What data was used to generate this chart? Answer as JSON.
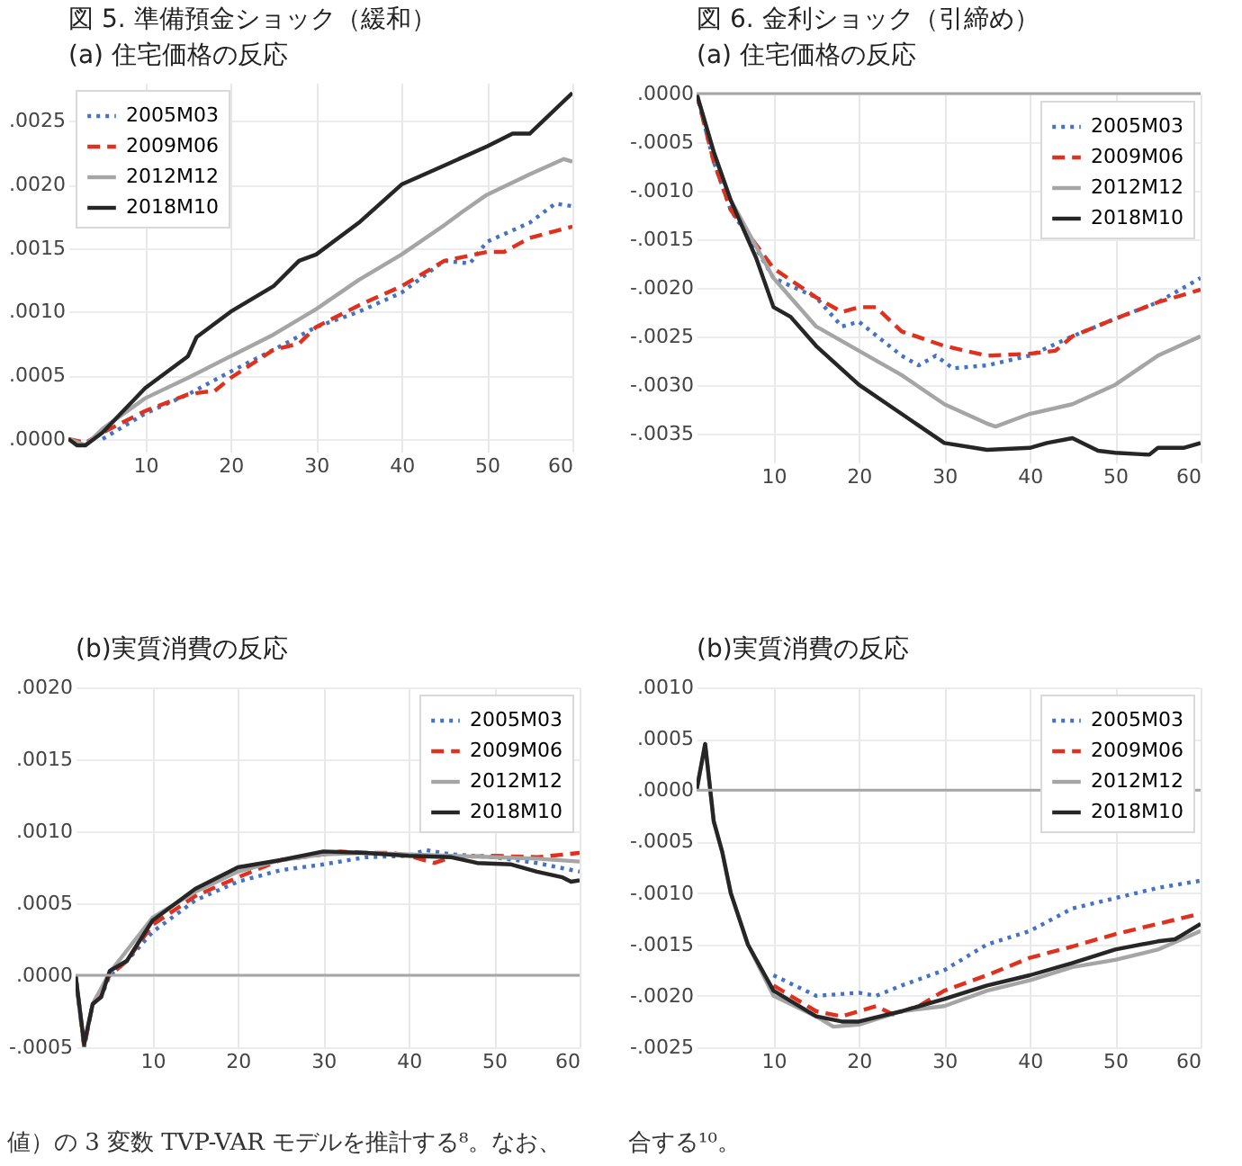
{
  "chart_data": [
    {
      "type": "line",
      "title": "図 5.  準備預金ショック（緩和）",
      "subtitle": "(a) 住宅価格の反応",
      "xlim": [
        1,
        60
      ],
      "xticks": [
        10,
        20,
        30,
        40,
        50,
        60
      ],
      "ylim": [
        -0.0001,
        0.0028
      ],
      "yticks": [
        {
          "value": 0,
          "label": ".0000"
        },
        {
          "value": 0.0005,
          "label": ".0005"
        },
        {
          "value": 0.001,
          "label": ".0010"
        },
        {
          "value": 0.0015,
          "label": ".0015"
        },
        {
          "value": 0.002,
          "label": ".0020"
        },
        {
          "value": 0.0025,
          "label": ".0025"
        }
      ],
      "grid": true,
      "legend": "top left",
      "series": [
        {
          "name": "2005M03",
          "color": "#4472c4",
          "line_style": "dotted",
          "x": [
            5,
            10,
            15,
            20,
            25,
            30,
            35,
            40,
            45,
            48,
            50,
            55,
            58,
            60
          ],
          "values": [
            0,
            0.0002,
            0.00035,
            0.00053,
            0.0007,
            0.00088,
            0.001,
            0.00115,
            0.0014,
            0.00138,
            0.00155,
            0.0017,
            0.00185,
            0.00183
          ]
        },
        {
          "name": "2009M06",
          "color": "#e0301e",
          "line_style": "dashed",
          "x": [
            1,
            3,
            5,
            10,
            15,
            17,
            18,
            20,
            25,
            28,
            30,
            35,
            40,
            45,
            50,
            52,
            55,
            60
          ],
          "values": [
            0,
            -3e-05,
            5e-05,
            0.00022,
            0.00035,
            0.00037,
            0.00037,
            0.00048,
            0.0007,
            0.00075,
            0.00088,
            0.00105,
            0.0012,
            0.0014,
            0.00147,
            0.00147,
            0.00158,
            0.00167
          ]
        },
        {
          "name": "2012M12",
          "color": "#a5a5a5",
          "line_style": "solid",
          "x": [
            1,
            3,
            5,
            10,
            15,
            20,
            25,
            30,
            35,
            40,
            45,
            47,
            50,
            55,
            59,
            60
          ],
          "values": [
            0,
            -5e-05,
            8e-05,
            0.00032,
            0.00048,
            0.00065,
            0.00082,
            0.00102,
            0.00125,
            0.00145,
            0.00168,
            0.00178,
            0.00192,
            0.00208,
            0.0022,
            0.00218
          ]
        },
        {
          "name": "2018M10",
          "color": "#262626",
          "line_style": "solid",
          "x": [
            1,
            2,
            3,
            5,
            10,
            15,
            16,
            20,
            25,
            28,
            30,
            35,
            40,
            45,
            50,
            53,
            55,
            60
          ],
          "values": [
            0,
            -5e-05,
            -5e-05,
            5e-05,
            0.0004,
            0.00065,
            0.0008,
            0.001,
            0.0012,
            0.0014,
            0.00145,
            0.0017,
            0.002,
            0.00215,
            0.0023,
            0.0024,
            0.0024,
            0.00272
          ]
        }
      ]
    },
    {
      "type": "line",
      "title": "図 6.  金利ショック（引締め）",
      "subtitle": "(a) 住宅価格の反応",
      "xlim": [
        1,
        60
      ],
      "xticks": [
        10,
        20,
        30,
        40,
        50,
        60
      ],
      "ylim": [
        -0.0038,
        0
      ],
      "yticks": [
        {
          "value": 0,
          "label": ".0000"
        },
        {
          "value": -0.0005,
          "label": "-.0005"
        },
        {
          "value": -0.001,
          "label": "-.0010"
        },
        {
          "value": -0.0015,
          "label": "-.0015"
        },
        {
          "value": -0.002,
          "label": "-.0020"
        },
        {
          "value": -0.0025,
          "label": "-.0025"
        },
        {
          "value": -0.003,
          "label": "-.0030"
        },
        {
          "value": -0.0035,
          "label": "-.0035"
        }
      ],
      "grid": true,
      "legend": "top right",
      "ref_lines": [
        {
          "axis": "y",
          "value": 0,
          "color": "#a6a6a6"
        }
      ],
      "series": [
        {
          "name": "2005M03",
          "color": "#4472c4",
          "line_style": "dotted",
          "x": [
            1,
            3,
            5,
            8,
            10,
            15,
            18,
            20,
            25,
            27,
            29,
            31,
            35,
            40,
            45,
            50,
            55,
            60
          ],
          "values": [
            0,
            -0.0007,
            -0.0012,
            -0.0016,
            -0.0019,
            -0.0021,
            -0.0024,
            -0.00235,
            -0.0027,
            -0.0028,
            -0.0027,
            -0.00283,
            -0.0028,
            -0.0027,
            -0.0025,
            -0.00232,
            -0.00215,
            -0.0019
          ]
        },
        {
          "name": "2009M06",
          "color": "#e0301e",
          "line_style": "dashed",
          "x": [
            1,
            3,
            5,
            10,
            15,
            18,
            20,
            22,
            25,
            30,
            35,
            40,
            43,
            45,
            50,
            55,
            60
          ],
          "values": [
            0,
            -0.0007,
            -0.0012,
            -0.0018,
            -0.0021,
            -0.00225,
            -0.0022,
            -0.0022,
            -0.00245,
            -0.0026,
            -0.0027,
            -0.00268,
            -0.00265,
            -0.0025,
            -0.00232,
            -0.00215,
            -0.00202
          ]
        },
        {
          "name": "2012M12",
          "color": "#a5a5a5",
          "line_style": "solid",
          "x": [
            1,
            3,
            5,
            10,
            15,
            20,
            25,
            30,
            35,
            36,
            40,
            45,
            50,
            55,
            60
          ],
          "values": [
            0,
            -0.0006,
            -0.0011,
            -0.0019,
            -0.0024,
            -0.00265,
            -0.0029,
            -0.0032,
            -0.0034,
            -0.00343,
            -0.0033,
            -0.0032,
            -0.003,
            -0.0027,
            -0.0025
          ]
        },
        {
          "name": "2018M10",
          "color": "#262626",
          "line_style": "solid",
          "x": [
            1,
            3,
            5,
            8,
            10,
            12,
            15,
            20,
            25,
            30,
            35,
            40,
            42,
            45,
            48,
            50,
            54,
            55,
            58,
            60
          ],
          "values": [
            0,
            -0.0006,
            -0.0011,
            -0.0017,
            -0.0022,
            -0.0023,
            -0.0026,
            -0.003,
            -0.0033,
            -0.0036,
            -0.00367,
            -0.00365,
            -0.0036,
            -0.00355,
            -0.00368,
            -0.0037,
            -0.00372,
            -0.00365,
            -0.00365,
            -0.0036
          ]
        }
      ]
    },
    {
      "type": "line",
      "title": "(b)実質消費の反応",
      "xlim": [
        1,
        60
      ],
      "xticks": [
        10,
        20,
        30,
        40,
        50,
        60
      ],
      "ylim": [
        -0.0005,
        0.002
      ],
      "yticks": [
        {
          "value": -0.0005,
          "label": "-.0005"
        },
        {
          "value": 0,
          "label": ".0000"
        },
        {
          "value": 0.0005,
          "label": ".0005"
        },
        {
          "value": 0.001,
          "label": ".0010"
        },
        {
          "value": 0.0015,
          "label": ".0015"
        },
        {
          "value": 0.002,
          "label": ".0020"
        }
      ],
      "grid": true,
      "legend": "top right",
      "ref_lines": [
        {
          "axis": "y",
          "value": 0,
          "color": "#a6a6a6"
        }
      ],
      "annotations": [
        "値）の 3 変数 TVP-VAR モデルを推計する⁸。なお、"
      ],
      "series": [
        {
          "name": "2005M03",
          "color": "#4472c4",
          "line_style": "dotted",
          "x": [
            1,
            2,
            3,
            4,
            5,
            7,
            10,
            15,
            20,
            25,
            30,
            35,
            40,
            42,
            45,
            50,
            55,
            60
          ],
          "values": [
            0,
            -0.0005,
            -0.0002,
            -0.00015,
            0,
            0.0001,
            0.0003,
            0.00052,
            0.00065,
            0.00073,
            0.00077,
            0.00082,
            0.00083,
            0.00087,
            0.00084,
            0.00082,
            0.00078,
            0.00072
          ]
        },
        {
          "name": "2009M06",
          "color": "#e0301e",
          "line_style": "dashed",
          "x": [
            1,
            2,
            3,
            5,
            7,
            10,
            15,
            20,
            25,
            30,
            32,
            35,
            38,
            40,
            43,
            45,
            50,
            55,
            60
          ],
          "values": [
            0,
            -0.0005,
            -0.0002,
            0,
            0.0001,
            0.00035,
            0.00055,
            0.00068,
            0.0008,
            0.00084,
            0.00086,
            0.00085,
            0.00085,
            0.00083,
            0.00078,
            0.00082,
            0.00083,
            0.00082,
            0.00085
          ]
        },
        {
          "name": "2012M12",
          "color": "#a5a5a5",
          "line_style": "solid",
          "x": [
            1,
            2,
            3,
            5,
            10,
            15,
            20,
            25,
            30,
            35,
            40,
            45,
            50,
            55,
            60
          ],
          "values": [
            0,
            -0.00048,
            -0.0002,
            2e-05,
            0.0004,
            0.00058,
            0.00072,
            0.0008,
            0.00084,
            0.00085,
            0.00084,
            0.00083,
            0.00082,
            0.00081,
            0.00079
          ]
        },
        {
          "name": "2018M10",
          "color": "#262626",
          "line_style": "solid",
          "x": [
            1,
            2,
            3,
            4,
            5,
            7,
            10,
            15,
            20,
            25,
            30,
            35,
            40,
            45,
            48,
            52,
            55,
            58,
            59,
            60
          ],
          "values": [
            0,
            -0.00048,
            -0.0002,
            -0.00015,
            3e-05,
            0.0001,
            0.00038,
            0.0006,
            0.00075,
            0.0008,
            0.00086,
            0.00085,
            0.00083,
            0.00082,
            0.00078,
            0.00077,
            0.00072,
            0.00068,
            0.00065,
            0.00066
          ]
        }
      ]
    },
    {
      "type": "line",
      "title": "(b)実質消費の反応",
      "xlim": [
        1,
        60
      ],
      "xticks": [
        10,
        20,
        30,
        40,
        50,
        60
      ],
      "ylim": [
        -0.0025,
        0.001
      ],
      "yticks": [
        {
          "value": -0.0025,
          "label": "-.0025"
        },
        {
          "value": -0.002,
          "label": "-.0020"
        },
        {
          "value": -0.0015,
          "label": "-.0015"
        },
        {
          "value": -0.001,
          "label": "-.0010"
        },
        {
          "value": -0.0005,
          "label": "-.0005"
        },
        {
          "value": 0,
          "label": ".0000"
        },
        {
          "value": 0.0005,
          "label": ".0005"
        },
        {
          "value": 0.001,
          "label": ".0010"
        }
      ],
      "grid": true,
      "legend": "top right",
      "ref_lines": [
        {
          "axis": "y",
          "value": 0,
          "color": "#a6a6a6"
        }
      ],
      "annotations": [
        "合する¹⁰。"
      ],
      "series": [
        {
          "name": "2005M03",
          "color": "#4472c4",
          "line_style": "dotted",
          "x": [
            10,
            15,
            20,
            22,
            25,
            30,
            35,
            40,
            45,
            50,
            55,
            60
          ],
          "values": [
            -0.0018,
            -0.002,
            -0.00197,
            -0.002,
            -0.0019,
            -0.00175,
            -0.0015,
            -0.00137,
            -0.00115,
            -0.00105,
            -0.00095,
            -0.00088
          ]
        },
        {
          "name": "2009M06",
          "color": "#e0301e",
          "line_style": "dashed",
          "x": [
            10,
            15,
            18,
            20,
            22,
            24,
            27,
            30,
            35,
            40,
            45,
            50,
            55,
            60
          ],
          "values": [
            -0.0019,
            -0.00215,
            -0.0022,
            -0.00215,
            -0.0021,
            -0.00218,
            -0.0021,
            -0.00195,
            -0.0018,
            -0.00163,
            -0.00152,
            -0.0014,
            -0.0013,
            -0.0012
          ]
        },
        {
          "name": "2012M12",
          "color": "#a5a5a5",
          "line_style": "solid",
          "x": [
            1,
            2,
            3,
            4,
            5,
            7,
            10,
            15,
            17,
            20,
            25,
            30,
            35,
            40,
            45,
            50,
            55,
            60
          ],
          "values": [
            0,
            0.00045,
            -0.0003,
            -0.0006,
            -0.001,
            -0.0015,
            -0.002,
            -0.0022,
            -0.0023,
            -0.00228,
            -0.00215,
            -0.0021,
            -0.00195,
            -0.00185,
            -0.00172,
            -0.00165,
            -0.00155,
            -0.00137
          ]
        },
        {
          "name": "2018M10",
          "color": "#262626",
          "line_style": "solid",
          "x": [
            1,
            2,
            3,
            4,
            5,
            7,
            10,
            15,
            18,
            20,
            25,
            30,
            35,
            40,
            45,
            50,
            55,
            57,
            58,
            60
          ],
          "values": [
            0,
            0.00045,
            -0.0003,
            -0.0006,
            -0.001,
            -0.0015,
            -0.00195,
            -0.0022,
            -0.00225,
            -0.00225,
            -0.00215,
            -0.00203,
            -0.0019,
            -0.0018,
            -0.00168,
            -0.00155,
            -0.00147,
            -0.00145,
            -0.0014,
            -0.0013
          ]
        }
      ]
    }
  ]
}
